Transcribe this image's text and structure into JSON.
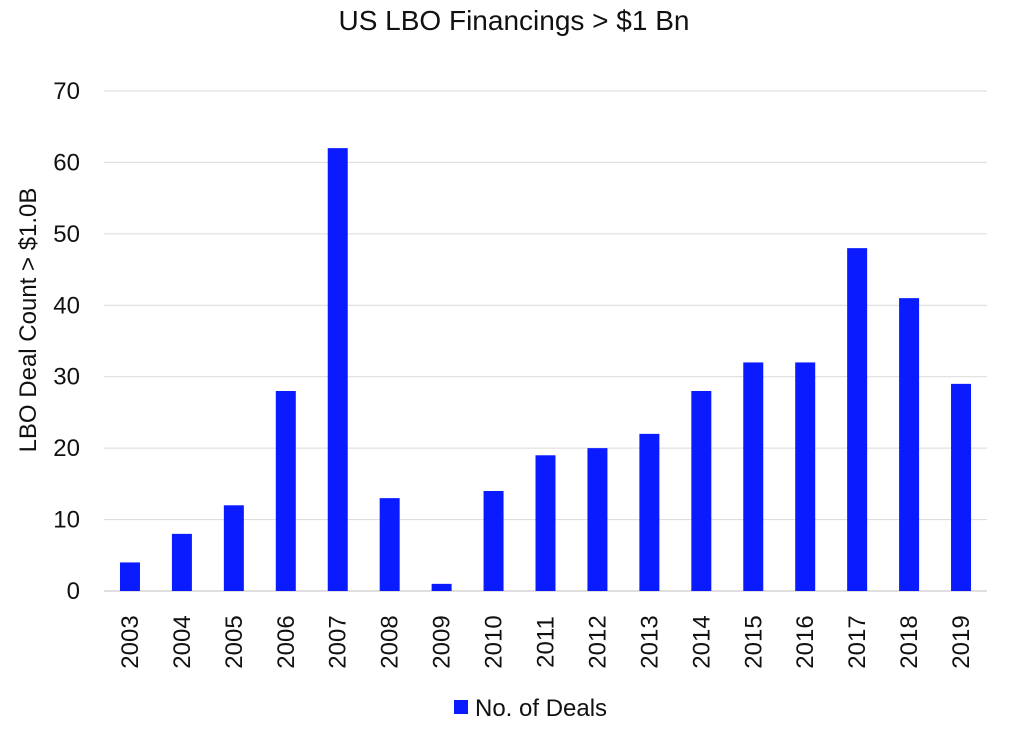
{
  "chart_data": {
    "type": "bar",
    "title": "US LBO Financings > $1 Bn",
    "xlabel": "",
    "ylabel": "LBO Deal Count > $1.0B",
    "categories": [
      "2003",
      "2004",
      "2005",
      "2006",
      "2007",
      "2008",
      "2009",
      "2010",
      "2011",
      "2012",
      "2013",
      "2014",
      "2015",
      "2016",
      "2017",
      "2018",
      "2019"
    ],
    "series": [
      {
        "name": "No. of Deals",
        "values": [
          4,
          8,
          12,
          28,
          62,
          13,
          1,
          14,
          19,
          20,
          22,
          28,
          32,
          32,
          48,
          41,
          29
        ],
        "color": "#0a1cff"
      }
    ],
    "ylim": [
      0,
      70
    ],
    "yticks": [
      0,
      10,
      20,
      30,
      40,
      50,
      60,
      70
    ],
    "grid": true,
    "legend_position": "bottom-center"
  }
}
